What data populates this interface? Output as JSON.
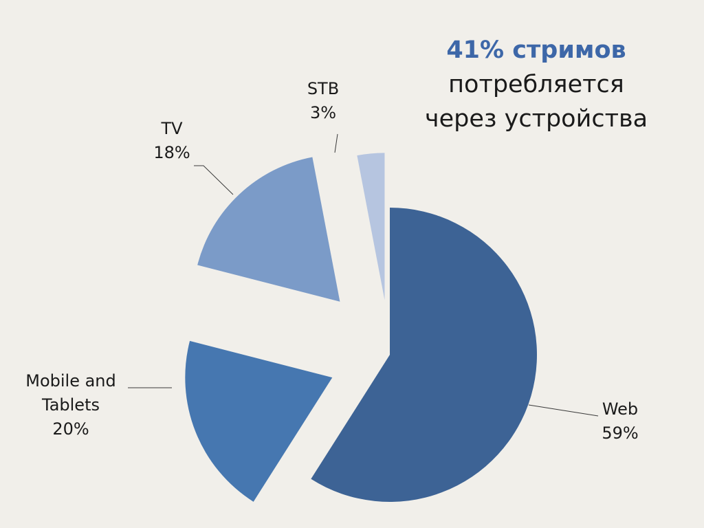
{
  "headline": {
    "accent": "41% стримов",
    "line1": "потребляется",
    "line2": "через устройства"
  },
  "colors": {
    "background": "#f1efea",
    "accent": "#3d67a8"
  },
  "chart_data": {
    "type": "pie",
    "exploded": true,
    "start": "12 o'clock",
    "direction": "clockwise",
    "slices": [
      {
        "label": "Web",
        "value": 59,
        "value_label": "59%",
        "color": "#3d6395"
      },
      {
        "label": "Mobile and Tablets",
        "label_lines": [
          "Mobile and",
          "Tablets"
        ],
        "value": 20,
        "value_label": "20%",
        "color": "#4677b0"
      },
      {
        "label": "TV",
        "value": 18,
        "value_label": "18%",
        "color": "#7b9bc8"
      },
      {
        "label": "STB",
        "value": 3,
        "value_label": "3%",
        "color": "#b6c5e0"
      }
    ]
  }
}
